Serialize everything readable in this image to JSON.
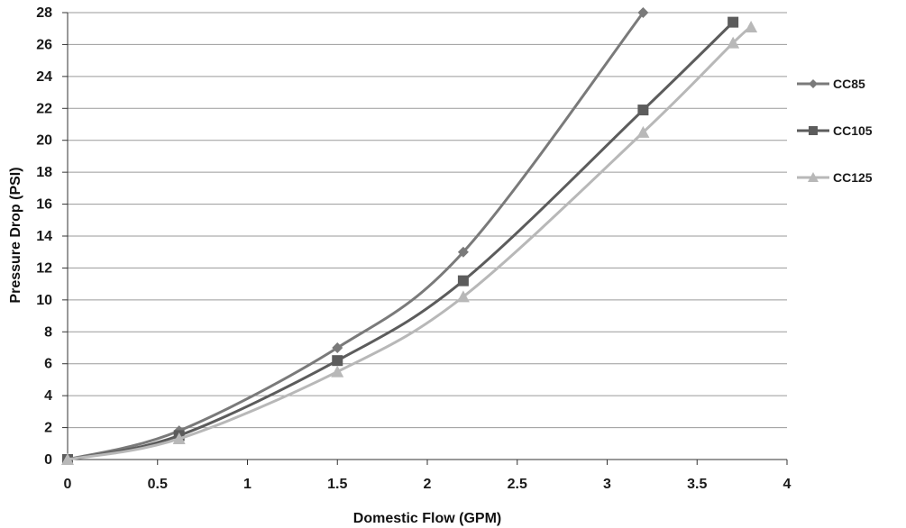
{
  "chart_data": {
    "type": "line",
    "xlabel": "Domestic Flow (GPM)",
    "ylabel": "Pressure Drop (PSI)",
    "xlim": [
      0,
      4
    ],
    "ylim": [
      0,
      28
    ],
    "x_ticks": [
      "0",
      "0.5",
      "1",
      "1.5",
      "2",
      "2.5",
      "3",
      "3.5",
      "4"
    ],
    "x_tick_values": [
      0,
      0.5,
      1,
      1.5,
      2,
      2.5,
      3,
      3.5,
      4
    ],
    "y_ticks": [
      "0",
      "2",
      "4",
      "6",
      "8",
      "10",
      "12",
      "14",
      "16",
      "18",
      "20",
      "22",
      "24",
      "26",
      "28"
    ],
    "y_tick_values": [
      0,
      2,
      4,
      6,
      8,
      10,
      12,
      14,
      16,
      18,
      20,
      22,
      24,
      26,
      28
    ],
    "grid": "horizontal",
    "legend_position": "right",
    "series": [
      {
        "name": "CC85",
        "color": "#7a7a7a",
        "marker": "diamond",
        "points": [
          [
            0,
            0
          ],
          [
            0.62,
            1.8
          ],
          [
            1.5,
            7.0
          ],
          [
            2.2,
            13.0
          ],
          [
            3.2,
            28.0
          ]
        ]
      },
      {
        "name": "CC105",
        "color": "#5c5c5c",
        "marker": "square",
        "points": [
          [
            0,
            0
          ],
          [
            0.62,
            1.5
          ],
          [
            1.5,
            6.2
          ],
          [
            2.2,
            11.2
          ],
          [
            3.2,
            21.9
          ],
          [
            3.7,
            27.4
          ]
        ]
      },
      {
        "name": "CC125",
        "color": "#b8b8b8",
        "marker": "triangle",
        "points": [
          [
            0,
            0
          ],
          [
            0.62,
            1.3
          ],
          [
            1.5,
            5.5
          ],
          [
            2.2,
            10.2
          ],
          [
            3.2,
            20.5
          ],
          [
            3.7,
            26.1
          ],
          [
            3.8,
            27.1
          ]
        ]
      }
    ]
  }
}
